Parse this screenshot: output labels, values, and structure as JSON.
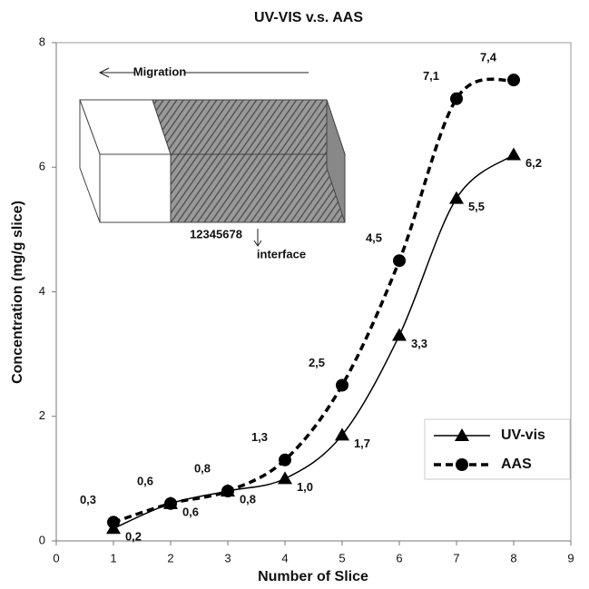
{
  "chart_data": {
    "type": "line",
    "title": "UV-VIS v.s. AAS",
    "x_label": "Number of Slice",
    "y_label": "Concentration (mg/g slice)",
    "x": [
      1,
      2,
      3,
      4,
      5,
      6,
      7,
      8
    ],
    "series": [
      {
        "name": "UV-vis",
        "color": "#000000",
        "marker": "triangle",
        "dash": "solid",
        "values": [
          0.2,
          0.6,
          0.8,
          1.0,
          1.7,
          3.3,
          5.5,
          6.2
        ],
        "value_labels": [
          "0,2",
          "0,6",
          "0,8",
          "1,0",
          "1,7",
          "3,3",
          "5,5",
          "6,2"
        ]
      },
      {
        "name": "AAS",
        "color": "#000000",
        "marker": "circle",
        "dash": "dashed",
        "values": [
          0.3,
          0.6,
          0.8,
          1.3,
          2.5,
          4.5,
          7.1,
          7.4
        ],
        "value_labels": [
          "0,3",
          "0,6",
          "0,8",
          "1,3",
          "2,5",
          "4,5",
          "7,1",
          "7,4"
        ]
      }
    ],
    "xlim": [
      0,
      9
    ],
    "xticks": [
      0,
      1,
      2,
      3,
      4,
      5,
      6,
      7,
      8,
      9
    ],
    "ylim": [
      0,
      8
    ],
    "yticks": [
      0,
      2,
      4,
      6,
      8
    ],
    "grid": false,
    "legend": "lower right",
    "annotations": [
      "Migration",
      "12345678",
      "interface"
    ]
  }
}
